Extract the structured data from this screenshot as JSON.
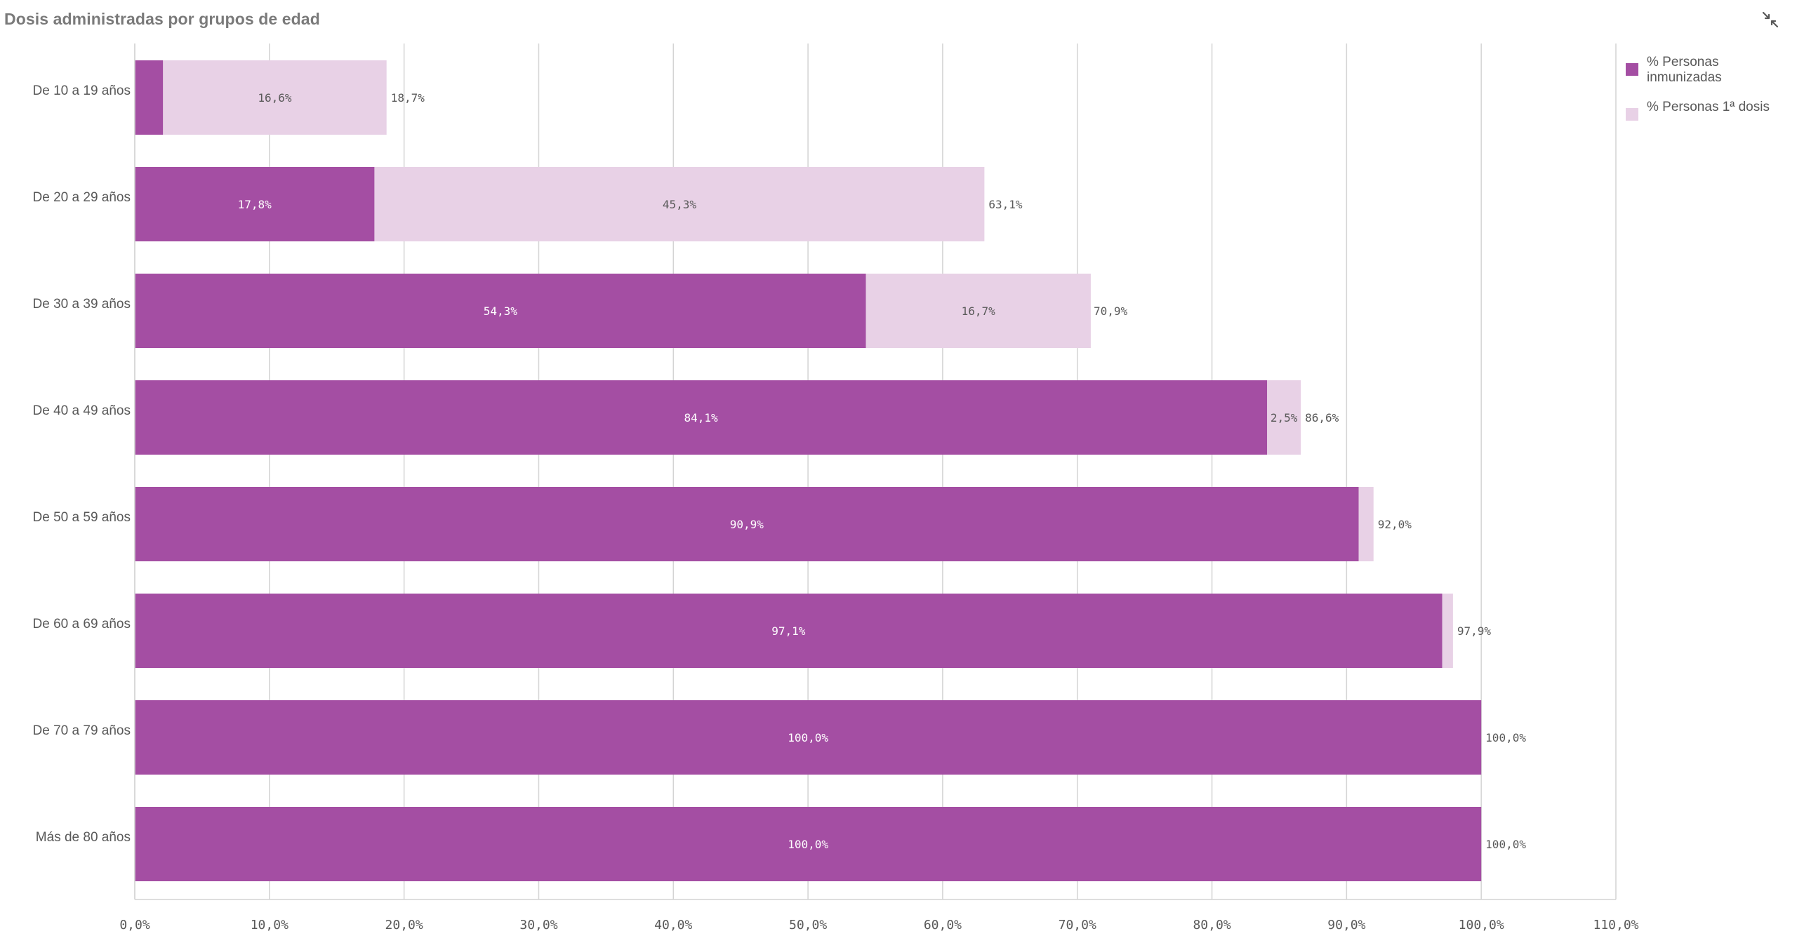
{
  "title": "Dosis administradas por grupos de edad",
  "expand_icon": "collapse-arrows-icon",
  "colors": {
    "immunized": "#a44ea3",
    "first_dose": "#e8d1e6",
    "grid": "#d4d4d4",
    "axis_text": "#595959",
    "inner_label_dark": "#ffffff",
    "inner_label_light": "#595959"
  },
  "legend": [
    {
      "label": "% Personas inmunizadas",
      "color": "#a44ea3"
    },
    {
      "label": "% Personas 1ª dosis",
      "color": "#e8d1e6"
    }
  ],
  "chart_data": {
    "type": "bar",
    "orientation": "horizontal",
    "stacked": true,
    "title": "Dosis administradas por grupos de edad",
    "categories": [
      "De 10 a 19 años",
      "De 20 a 29 años",
      "De 30 a 39 años",
      "De 40 a 49 años",
      "De 50 a 59 años",
      "De 60 a 69 años",
      "De 70 a 79 años",
      "Más de 80 años"
    ],
    "series": [
      {
        "name": "% Personas inmunizadas",
        "values": [
          2.1,
          17.8,
          54.3,
          84.1,
          90.9,
          97.1,
          100.0,
          100.0
        ],
        "labels": [
          "",
          "17,8%",
          "54,3%",
          "84,1%",
          "90,9%",
          "97,1%",
          "100,0%",
          "100,0%"
        ]
      },
      {
        "name": "% Personas 1ª dosis",
        "values": [
          16.6,
          45.3,
          16.7,
          2.5,
          1.1,
          0.8,
          0.0,
          0.0
        ],
        "labels": [
          "16,6%",
          "45,3%",
          "16,7%",
          "2,5%",
          "",
          "",
          "",
          ""
        ]
      }
    ],
    "totals": [
      18.7,
      63.1,
      70.9,
      86.6,
      92.0,
      97.9,
      100.0,
      100.0
    ],
    "total_labels": [
      "18,7%",
      "63,1%",
      "70,9%",
      "86,6%",
      "92,0%",
      "97,9%",
      "100,0%",
      "100,0%"
    ],
    "xlim": [
      0,
      110
    ],
    "xticks": [
      0,
      10,
      20,
      30,
      40,
      50,
      60,
      70,
      80,
      90,
      100,
      110
    ],
    "xtick_labels": [
      "0,0%",
      "10,0%",
      "20,0%",
      "30,0%",
      "40,0%",
      "50,0%",
      "60,0%",
      "70,0%",
      "80,0%",
      "90,0%",
      "100,0%",
      "110,0%"
    ],
    "grid": true,
    "legend_position": "top-right"
  }
}
